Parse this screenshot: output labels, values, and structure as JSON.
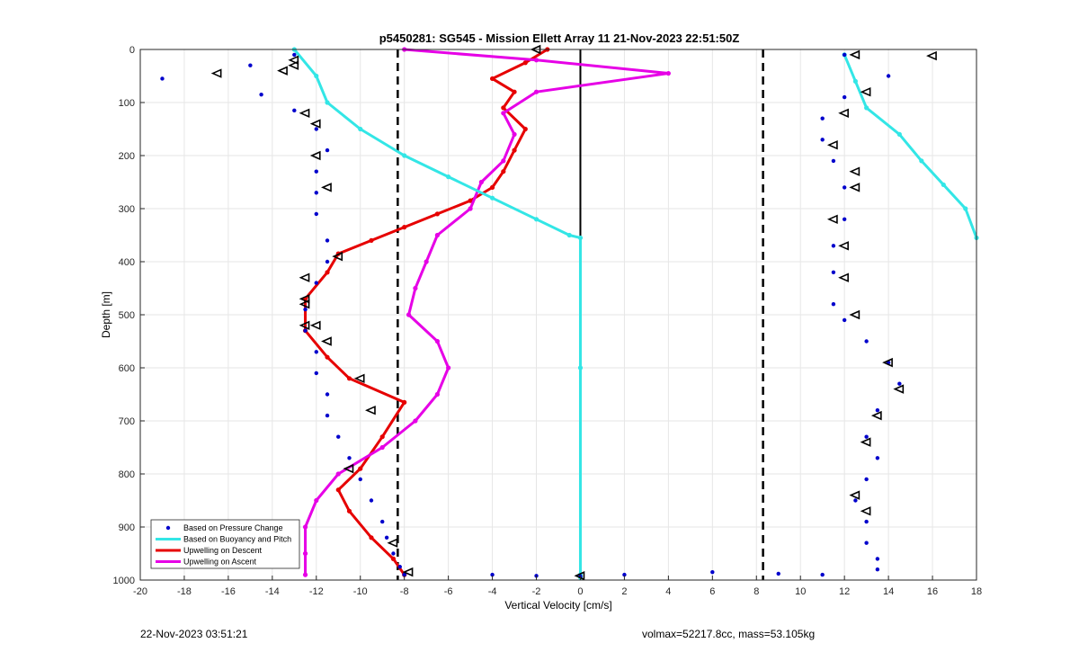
{
  "footer": {
    "timestamp": "22-Nov-2023 03:51:21",
    "vol_mass": "volmax=52217.8cc, mass=53.105kg"
  },
  "chart_data": {
    "type": "scatter",
    "title": "p5450281: SG545 - Mission Ellett Array 11 21-Nov-2023 22:51:50Z",
    "xlabel": "Vertical Velocity [cm/s]",
    "ylabel": "Depth [m]",
    "xlim": [
      -20,
      18
    ],
    "ylim": [
      0,
      1000
    ],
    "y_reversed": true,
    "grid": true,
    "x_ticks": [
      "-20",
      "-18",
      "-16",
      "-14",
      "-12",
      "-10",
      "-8",
      "-6",
      "-4",
      "-2",
      "0",
      "2",
      "4",
      "6",
      "8",
      "10",
      "12",
      "14",
      "16",
      "18"
    ],
    "y_ticks": [
      "0",
      "100",
      "200",
      "300",
      "400",
      "500",
      "600",
      "700",
      "800",
      "900",
      "1000"
    ],
    "legend_position": "bottom-left",
    "legend": [
      {
        "label": "Based on Pressure Change",
        "style": "marker",
        "color": "#0000cc"
      },
      {
        "label": "Based on Buoyancy and Pitch",
        "style": "line",
        "color": "#33e6e6"
      },
      {
        "label": "Upwelling on Descent",
        "style": "line",
        "color": "#e60000"
      },
      {
        "label": "Upwelling on Ascent",
        "style": "line",
        "color": "#e600e6"
      }
    ],
    "reference_lines": {
      "dashed_x": [
        -8.3,
        8.3
      ],
      "solid_segment": {
        "x": 0,
        "depth_from": 0,
        "depth_to": 355
      }
    },
    "series": [
      {
        "name": "Upwelling on Descent",
        "color": "#e60000",
        "x": [
          -1.5,
          -2.5,
          -4.0,
          -3.0,
          -3.5,
          -2.5,
          -3.0,
          -3.5,
          -4.0,
          -5.0,
          -6.5,
          -8.0,
          -9.5,
          -11.0,
          -11.5,
          -12.5,
          -12.5,
          -11.5,
          -10.5,
          -8.0,
          -9.0,
          -10.0,
          -11.0,
          -10.5,
          -9.5,
          -8.5,
          -8.0
        ],
        "y": [
          0,
          25,
          55,
          80,
          110,
          150,
          190,
          230,
          260,
          285,
          310,
          335,
          360,
          385,
          420,
          470,
          530,
          580,
          620,
          665,
          730,
          790,
          830,
          870,
          920,
          960,
          990
        ]
      },
      {
        "name": "Upwelling on Ascent",
        "color": "#e600e6",
        "x": [
          -8.0,
          -2.0,
          4.0,
          -2.0,
          -3.5,
          -3.0,
          -3.5,
          -4.5,
          -5.0,
          -6.5,
          -7.0,
          -7.5,
          -7.8,
          -6.5,
          -6.0,
          -6.5,
          -7.5,
          -9.0,
          -11.0,
          -12.0,
          -12.5,
          -12.5,
          -12.5
        ],
        "y": [
          0,
          20,
          45,
          80,
          120,
          160,
          210,
          250,
          300,
          350,
          400,
          450,
          500,
          550,
          600,
          650,
          700,
          750,
          800,
          850,
          900,
          950,
          990
        ]
      },
      {
        "name": "Based on Buoyancy and Pitch",
        "color": "#33e6e6",
        "x": [
          -13.0,
          -12.0,
          -11.5,
          -10.0,
          -8.0,
          -6.0,
          -4.0,
          -2.0,
          -0.5,
          0,
          0,
          0,
          0
        ],
        "y": [
          0,
          50,
          100,
          150,
          200,
          240,
          280,
          320,
          350,
          355,
          600,
          990,
          995
        ]
      },
      {
        "name": "Based on Buoyancy and Pitch",
        "color": "#33e6e6",
        "x": [
          12.0,
          12.5,
          13.0,
          14.5,
          15.5,
          16.5,
          17.5,
          18.0
        ],
        "y": [
          10,
          60,
          110,
          160,
          210,
          255,
          300,
          355
        ]
      },
      {
        "name": "Based on Pressure Change",
        "color": "#0000cc",
        "x": [
          -13.0,
          -15.0,
          -19.0,
          -14.5,
          -13.0,
          -12.0,
          -11.5,
          -12.0,
          -12.0,
          -12.0,
          -11.5,
          -11.5,
          -12.0,
          -12.5,
          -12.5,
          -12.0,
          -12.0,
          -11.5,
          -11.5,
          -11.0,
          -10.5,
          -10.0,
          -9.5,
          -9.0,
          -8.8,
          -8.5,
          -8.2,
          -8.0
        ],
        "y": [
          10,
          30,
          55,
          85,
          115,
          150,
          190,
          230,
          270,
          310,
          360,
          400,
          440,
          490,
          530,
          570,
          610,
          650,
          690,
          730,
          770,
          810,
          850,
          890,
          920,
          950,
          975,
          990
        ]
      },
      {
        "name": "Based on Pressure Change",
        "color": "#0000cc",
        "x": [
          12.0,
          14.0,
          12.0,
          11.0,
          11.0,
          11.5,
          12.0,
          12.0,
          11.5,
          11.5,
          11.5,
          12.0,
          13.0,
          14.0,
          14.5,
          13.5,
          13.0,
          13.5,
          13.0,
          12.5,
          13.0,
          13.0,
          13.5,
          13.5
        ],
        "y": [
          10,
          50,
          90,
          130,
          170,
          210,
          260,
          320,
          370,
          420,
          480,
          510,
          550,
          590,
          630,
          680,
          730,
          770,
          810,
          850,
          890,
          930,
          960,
          980
        ]
      },
      {
        "name": "Based on Pressure Change",
        "color": "#0000cc",
        "x": [
          -8.0,
          -4.0,
          -2.0,
          0.0,
          2.0,
          6.0,
          9.0,
          11.0
        ],
        "y": [
          990,
          990,
          992,
          993,
          990,
          985,
          988,
          990
        ]
      }
    ],
    "markers": {
      "color": "#000000",
      "x": [
        -13.0,
        -13.5,
        -16.5,
        -12.5,
        -12.0,
        -11.5,
        -11.0,
        -12.0,
        -12.5,
        -12.5,
        -11.5,
        -10.0,
        -9.5,
        -10.5,
        -8.5,
        -7.8,
        -12.5,
        -12.5,
        -13.0,
        -12.0,
        12.5,
        13.0,
        12.0,
        11.5,
        12.5,
        12.5,
        11.5,
        12.0,
        12.0,
        12.5,
        14.0,
        14.5,
        13.5,
        13.0,
        12.5,
        13.0,
        0.0,
        -2.0,
        16.0
      ],
      "y": [
        20,
        40,
        45,
        120,
        200,
        260,
        390,
        520,
        430,
        470,
        550,
        620,
        680,
        790,
        930,
        985,
        480,
        520,
        30,
        140,
        10,
        80,
        120,
        180,
        230,
        260,
        320,
        370,
        430,
        500,
        590,
        640,
        690,
        740,
        840,
        870,
        992,
        0,
        12
      ]
    }
  }
}
